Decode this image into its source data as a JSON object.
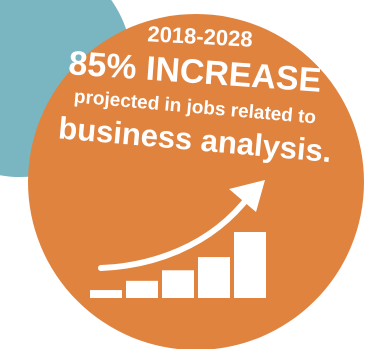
{
  "colors": {
    "teal_circle": "#7ab5c2",
    "orange_circle": "#e0833f",
    "text": "#ffffff",
    "chart": "#ffffff"
  },
  "headline": {
    "years": "2018-2028",
    "increase": "85% INCREASE",
    "projected": "projected in jobs related to",
    "topic": "business analysis."
  },
  "icon": {
    "name": "growth-bar-chart-arrow-icon",
    "bar_levels": [
      0.12,
      0.26,
      0.42,
      0.62,
      1.0
    ]
  }
}
